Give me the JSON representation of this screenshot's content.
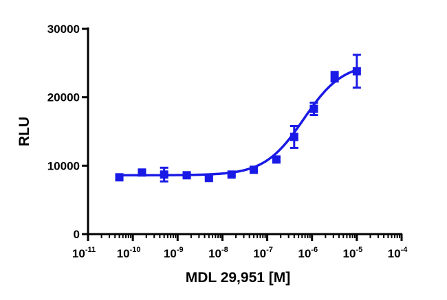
{
  "chart_data": {
    "type": "scatter",
    "title": "",
    "xlabel": "MDL 29,951 [M]",
    "ylabel": "RLU",
    "x_scale": "log10",
    "xlim": [
      1e-11,
      0.0001
    ],
    "ylim": [
      0,
      30000
    ],
    "x_ticks": [
      {
        "value": 1e-11,
        "base": "10",
        "exp": "-11"
      },
      {
        "value": 1e-10,
        "base": "10",
        "exp": "-10"
      },
      {
        "value": 1e-09,
        "base": "10",
        "exp": "-9"
      },
      {
        "value": 1e-08,
        "base": "10",
        "exp": "-8"
      },
      {
        "value": 1e-07,
        "base": "10",
        "exp": "-7"
      },
      {
        "value": 1e-06,
        "base": "10",
        "exp": "-6"
      },
      {
        "value": 1e-05,
        "base": "10",
        "exp": "-5"
      },
      {
        "value": 0.0001,
        "base": "10",
        "exp": "-4"
      }
    ],
    "y_ticks": [
      {
        "value": 0,
        "label": "0"
      },
      {
        "value": 10000,
        "label": "10000"
      },
      {
        "value": 20000,
        "label": "20000"
      },
      {
        "value": 30000,
        "label": "30000"
      }
    ],
    "grid": false,
    "legend": "none",
    "color": "#1a1ae6",
    "series": [
      {
        "points": [
          {
            "x": 5e-11,
            "y": 8300,
            "err": 200
          },
          {
            "x": 1.6e-10,
            "y": 9000,
            "err": 300
          },
          {
            "x": 5e-10,
            "y": 8700,
            "err": 1000
          },
          {
            "x": 1.6e-09,
            "y": 8600,
            "err": 250
          },
          {
            "x": 5e-09,
            "y": 8200,
            "err": 200
          },
          {
            "x": 1.6e-08,
            "y": 8700,
            "err": 200
          },
          {
            "x": 5e-08,
            "y": 9400,
            "err": 250
          },
          {
            "x": 1.6e-07,
            "y": 10900,
            "err": 300
          },
          {
            "x": 4e-07,
            "y": 14200,
            "err": 1600
          },
          {
            "x": 1.1e-06,
            "y": 18300,
            "err": 900
          },
          {
            "x": 3.2e-06,
            "y": 23000,
            "err": 700
          },
          {
            "x": 1e-05,
            "y": 23800,
            "err": 2400
          }
        ],
        "fit": {
          "model": "four-parameter logistic",
          "bottom": 8600,
          "top": 25000,
          "ec50": 6.5e-07,
          "hill": 1.0,
          "x_range": [
            5e-11,
            1e-05
          ]
        }
      }
    ]
  }
}
